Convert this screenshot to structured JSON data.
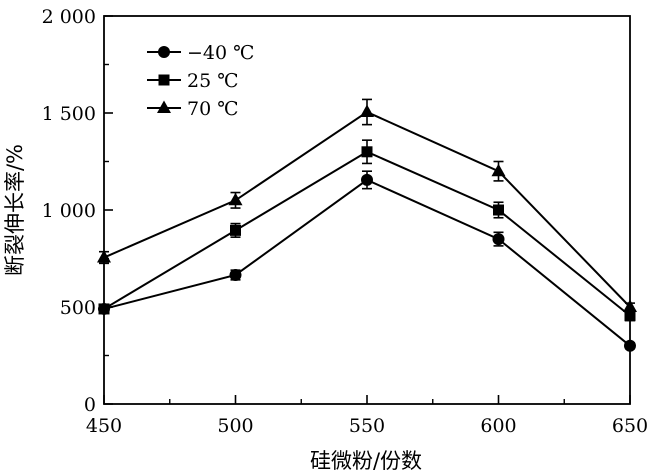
{
  "chart_data": {
    "type": "line",
    "title": "",
    "xlabel": "硅微粉/份数",
    "ylabel": "断裂伸长率/%",
    "xlim": [
      450,
      650
    ],
    "ylim": [
      0,
      2000
    ],
    "x_ticks": [
      450,
      500,
      550,
      600,
      650
    ],
    "x_tick_labels": [
      "450",
      "500",
      "550",
      "600",
      "650"
    ],
    "y_ticks": [
      0,
      500,
      1000,
      1500,
      2000
    ],
    "y_tick_labels": [
      "0",
      "500",
      "1 000",
      "1 500",
      "2 000"
    ],
    "grid": false,
    "legend_position": "top-left",
    "x": [
      450,
      500,
      550,
      600,
      650
    ],
    "series": [
      {
        "name": "−40 ℃",
        "marker": "circle",
        "values": [
          490,
          665,
          1155,
          850,
          300
        ],
        "errors": [
          0,
          25,
          45,
          35,
          15
        ]
      },
      {
        "name": "25 ℃",
        "marker": "square",
        "values": [
          490,
          895,
          1300,
          1000,
          455
        ],
        "errors": [
          15,
          35,
          60,
          40,
          25
        ]
      },
      {
        "name": "70 ℃",
        "marker": "triangle",
        "values": [
          755,
          1050,
          1505,
          1200,
          500
        ],
        "errors": [
          30,
          40,
          65,
          50,
          20
        ]
      }
    ]
  }
}
